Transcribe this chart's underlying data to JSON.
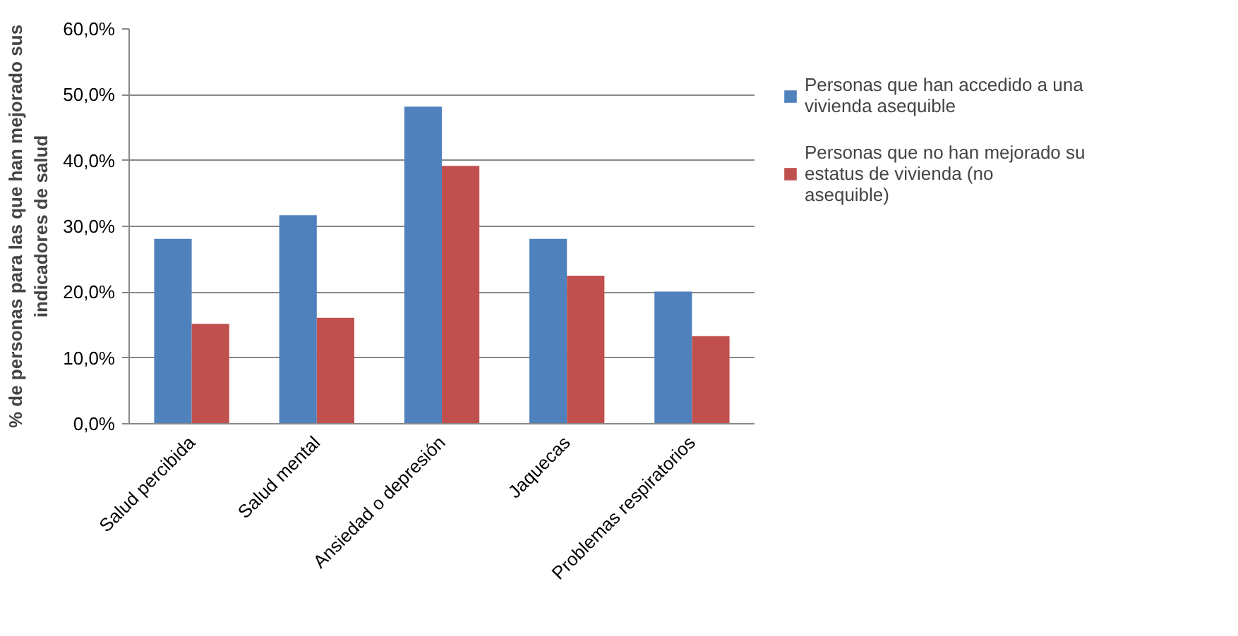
{
  "chart_data": {
    "type": "bar",
    "ylabel": "% de personas para las que han mejorado sus indicadores de salud",
    "categories": [
      "Salud percibida",
      "Salud mental",
      "Ansiedad o depresión",
      "Jaquecas",
      "Problemas respiratorios"
    ],
    "series": [
      {
        "name": "Personas que han accedido a una vivienda asequible",
        "color": "#4f81bd",
        "values": [
          28.1,
          31.7,
          48.2,
          28.1,
          20.1
        ]
      },
      {
        "name": "Personas que no han mejorado su estatus de vivienda (no asequible)",
        "color": "#c0504d",
        "values": [
          15.2,
          16.1,
          39.2,
          22.5,
          13.3
        ]
      }
    ],
    "ylim": [
      0,
      60
    ],
    "yticks": [
      {
        "value": 0,
        "label": "0,0%"
      },
      {
        "value": 10,
        "label": "10,0%"
      },
      {
        "value": 20,
        "label": "20,0%"
      },
      {
        "value": 30,
        "label": "30,0%"
      },
      {
        "value": 40,
        "label": "40,0%"
      },
      {
        "value": 50,
        "label": "50,0%"
      },
      {
        "value": 60,
        "label": "60,0%"
      }
    ],
    "grid": "y",
    "legend": "right"
  }
}
